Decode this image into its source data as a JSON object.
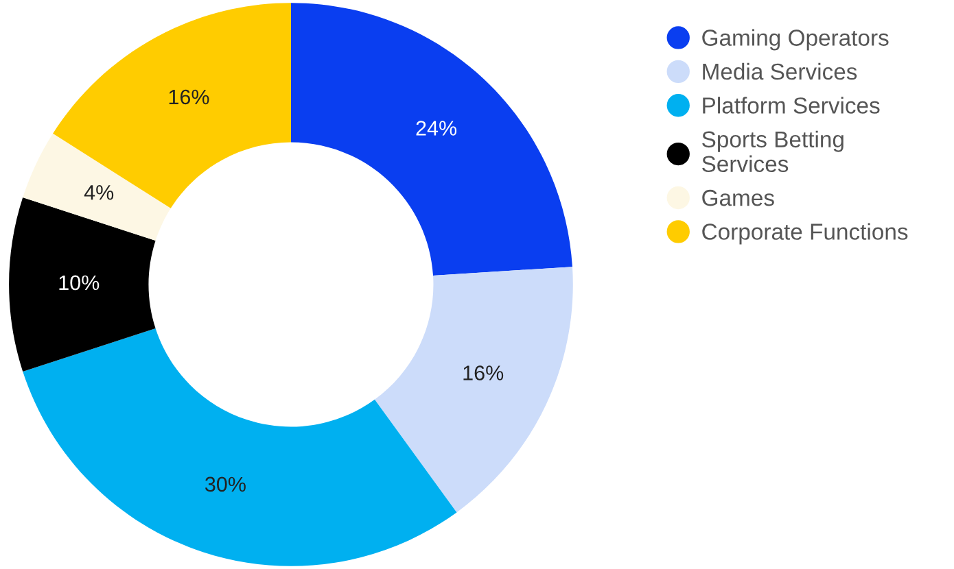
{
  "chart_data": {
    "type": "donut",
    "categories": [
      "Gaming Operators",
      "Media Services",
      "Platform Services",
      "Sports Betting Services",
      "Games",
      "Corporate Functions"
    ],
    "values": [
      24,
      16,
      30,
      10,
      4,
      16
    ],
    "value_labels": [
      "24%",
      "16%",
      "30%",
      "10%",
      "4%",
      "16%"
    ],
    "colors": [
      "#0a3ef0",
      "#ccdcfa",
      "#00b0f0",
      "#000000",
      "#fdf7e4",
      "#ffcc00"
    ],
    "legend": "right"
  }
}
